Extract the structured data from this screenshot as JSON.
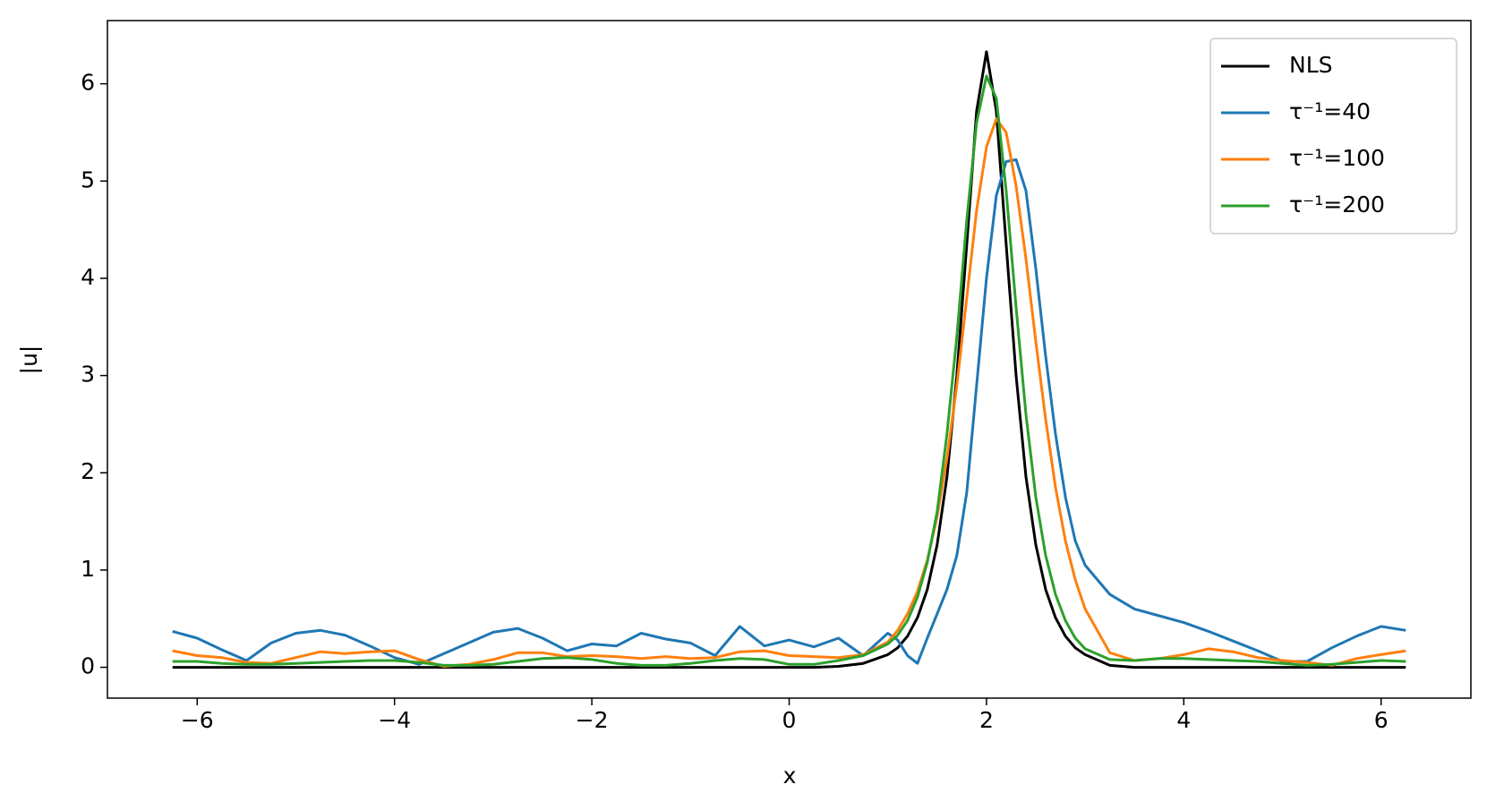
{
  "chart_data": {
    "type": "line",
    "x_label": "x",
    "y_label": "|u|",
    "x": [
      -6.25,
      -6.0,
      -5.75,
      -5.5,
      -5.25,
      -5.0,
      -4.75,
      -4.5,
      -4.25,
      -4.0,
      -3.75,
      -3.5,
      -3.25,
      -3.0,
      -2.75,
      -2.5,
      -2.25,
      -2.0,
      -1.75,
      -1.5,
      -1.25,
      -1.0,
      -0.75,
      -0.5,
      -0.25,
      0,
      0.25,
      0.5,
      0.75,
      1.0,
      1.1,
      1.2,
      1.3,
      1.4,
      1.5,
      1.6,
      1.7,
      1.8,
      1.9,
      2.0,
      2.1,
      2.2,
      2.3,
      2.4,
      2.5,
      2.6,
      2.7,
      2.8,
      2.9,
      3.0,
      3.25,
      3.5,
      3.75,
      4.0,
      4.25,
      4.5,
      4.75,
      5.0,
      5.25,
      5.5,
      5.75,
      6.0,
      6.25
    ],
    "series": [
      {
        "name": "NLS",
        "color": "#000000",
        "values": [
          0,
          0,
          0,
          0,
          0,
          0,
          0,
          0,
          0,
          0,
          0,
          0,
          0,
          0,
          0,
          0,
          0,
          0,
          0,
          0,
          0,
          0,
          0,
          0,
          0,
          0,
          0,
          0.01,
          0.04,
          0.13,
          0.2,
          0.32,
          0.51,
          0.8,
          1.26,
          1.96,
          3.0,
          4.35,
          5.72,
          6.33,
          5.72,
          4.35,
          3.0,
          1.96,
          1.26,
          0.8,
          0.51,
          0.32,
          0.2,
          0.13,
          0.02,
          0,
          0,
          0,
          0,
          0,
          0,
          0,
          0,
          0,
          0,
          0,
          0
        ]
      },
      {
        "name": "τ⁻¹=40",
        "color": "#1f77b4",
        "values": [
          0.37,
          0.3,
          0.18,
          0.07,
          0.25,
          0.35,
          0.38,
          0.33,
          0.22,
          0.1,
          0.03,
          0.14,
          0.25,
          0.36,
          0.4,
          0.3,
          0.17,
          0.24,
          0.22,
          0.35,
          0.29,
          0.25,
          0.12,
          0.42,
          0.22,
          0.28,
          0.21,
          0.3,
          0.12,
          0.35,
          0.28,
          0.12,
          0.04,
          0.3,
          0.55,
          0.8,
          1.15,
          1.8,
          2.9,
          4.0,
          4.85,
          5.2,
          5.22,
          4.9,
          4.1,
          3.2,
          2.4,
          1.75,
          1.3,
          1.05,
          0.75,
          0.6,
          0.53,
          0.46,
          0.37,
          0.27,
          0.17,
          0.06,
          0.06,
          0.2,
          0.32,
          0.42,
          0.38
        ]
      },
      {
        "name": "τ⁻¹=100",
        "color": "#ff7f0e",
        "values": [
          0.17,
          0.12,
          0.1,
          0.05,
          0.04,
          0.1,
          0.16,
          0.14,
          0.16,
          0.17,
          0.08,
          0.01,
          0.03,
          0.08,
          0.15,
          0.15,
          0.11,
          0.12,
          0.11,
          0.09,
          0.11,
          0.09,
          0.1,
          0.16,
          0.17,
          0.12,
          0.11,
          0.1,
          0.13,
          0.26,
          0.38,
          0.55,
          0.78,
          1.1,
          1.55,
          2.15,
          2.9,
          3.8,
          4.7,
          5.35,
          5.64,
          5.5,
          4.95,
          4.2,
          3.35,
          2.55,
          1.85,
          1.3,
          0.9,
          0.6,
          0.15,
          0.07,
          0.09,
          0.13,
          0.19,
          0.16,
          0.1,
          0.07,
          0.05,
          0.02,
          0.09,
          0.13,
          0.17
        ]
      },
      {
        "name": "τ⁻¹=200",
        "color": "#2ca02c",
        "values": [
          0.06,
          0.06,
          0.04,
          0.03,
          0.03,
          0.04,
          0.05,
          0.06,
          0.07,
          0.07,
          0.05,
          0.02,
          0.02,
          0.03,
          0.06,
          0.09,
          0.1,
          0.08,
          0.04,
          0.02,
          0.02,
          0.04,
          0.07,
          0.09,
          0.08,
          0.03,
          0.03,
          0.07,
          0.12,
          0.24,
          0.33,
          0.48,
          0.72,
          1.08,
          1.6,
          2.4,
          3.4,
          4.6,
          5.6,
          6.08,
          5.85,
          4.9,
          3.7,
          2.6,
          1.75,
          1.15,
          0.75,
          0.48,
          0.3,
          0.19,
          0.08,
          0.07,
          0.09,
          0.09,
          0.08,
          0.07,
          0.06,
          0.04,
          0.02,
          0.03,
          0.05,
          0.07,
          0.06
        ]
      }
    ],
    "xlim": [
      -6.91,
      6.91
    ],
    "ylim": [
      -0.317,
      6.65
    ],
    "xticks": [
      {
        "value": -6,
        "label": "−6"
      },
      {
        "value": -4,
        "label": "−4"
      },
      {
        "value": -2,
        "label": "−2"
      },
      0,
      2,
      4,
      6
    ],
    "yticks": [
      0,
      1,
      2,
      3,
      4,
      5,
      6
    ],
    "grid": false,
    "legend": "upper right"
  }
}
